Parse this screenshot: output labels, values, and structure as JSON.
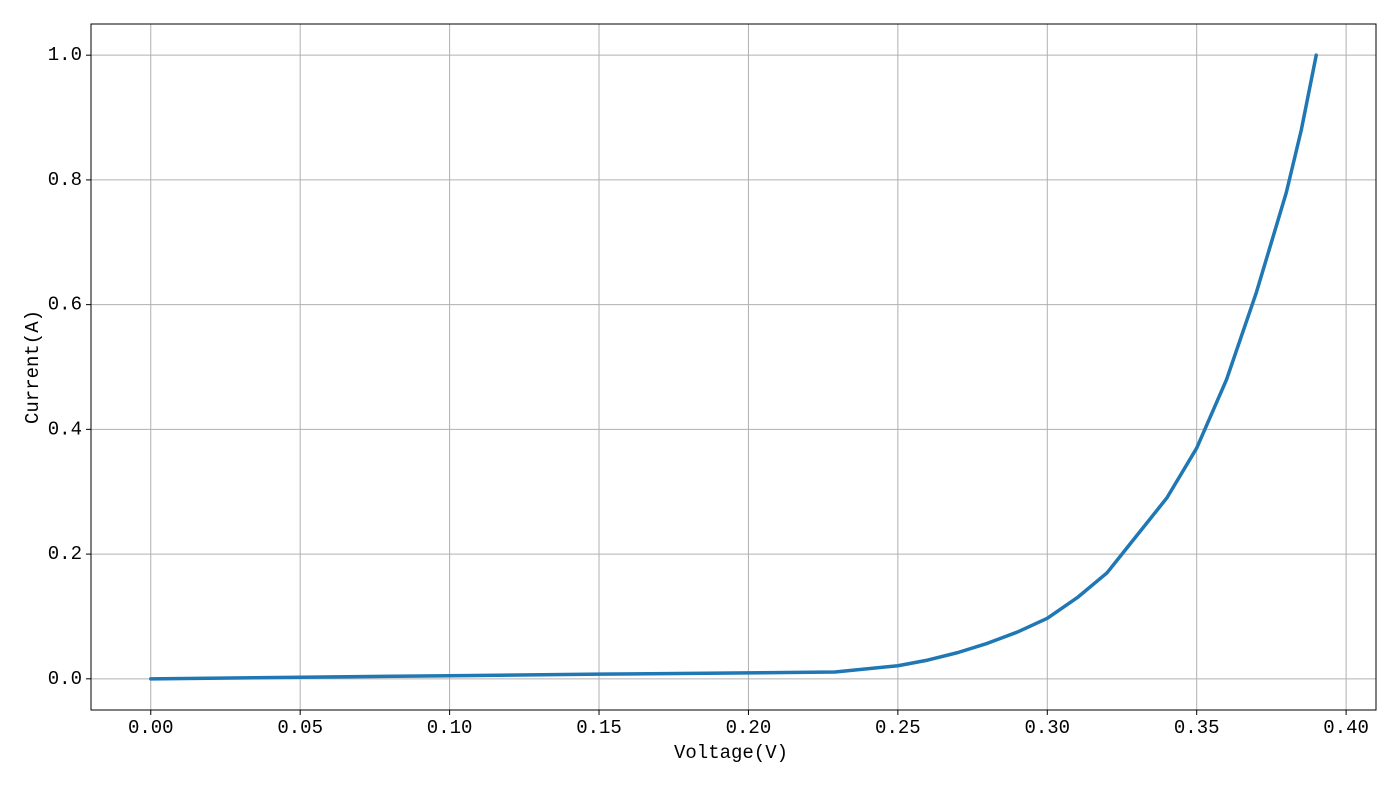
{
  "chart_data": {
    "type": "line",
    "x_label": "Voltage(V)",
    "y_label": "Current(A)",
    "x": [
      0,
      0.05,
      0.1,
      0.15,
      0.2,
      0.229,
      0.25,
      0.26,
      0.27,
      0.28,
      0.29,
      0.3,
      0.31,
      0.32,
      0.33,
      0.34,
      0.35,
      0.36,
      0.37,
      0.38,
      0.385,
      0.39
    ],
    "values": [
      0,
      0.0025,
      0.005,
      0.0075,
      0.0095,
      0.011,
      0.021,
      0.03,
      0.042,
      0.057,
      0.075,
      0.097,
      0.13,
      0.17,
      0.23,
      0.29,
      0.37,
      0.48,
      0.62,
      0.78,
      0.88,
      1.0
    ],
    "color": "#1f77b4",
    "xlim": [
      -0.02,
      0.41
    ],
    "ylim": [
      -0.05,
      1.05
    ],
    "xticks": [
      {
        "value": 0,
        "label": "0.00"
      },
      {
        "value": 0.05,
        "label": "0.05"
      },
      {
        "value": 0.1,
        "label": "0.10"
      },
      {
        "value": 0.15,
        "label": "0.15"
      },
      {
        "value": 0.2,
        "label": "0.20"
      },
      {
        "value": 0.25,
        "label": "0.25"
      },
      {
        "value": 0.3,
        "label": "0.30"
      },
      {
        "value": 0.35,
        "label": "0.35"
      },
      {
        "value": 0.4,
        "label": "0.40"
      }
    ],
    "yticks": [
      {
        "value": 0,
        "label": "0.0"
      },
      0.2,
      0.4,
      0.6,
      0.8,
      {
        "value": 1,
        "label": "1.0"
      }
    ],
    "grid": true
  }
}
